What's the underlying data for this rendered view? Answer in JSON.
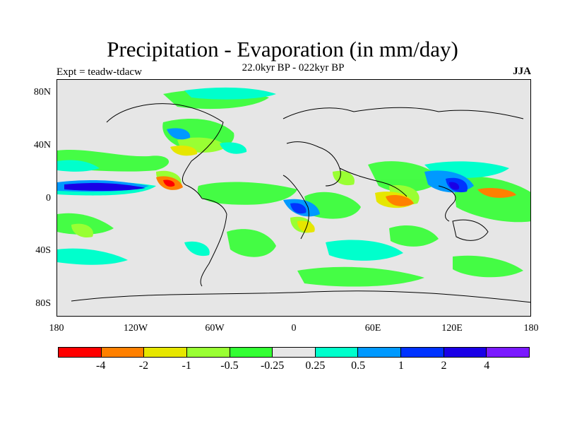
{
  "title": "Precipitation - Evaporation (in mm/day)",
  "subtitle": "22.0kyr BP - 022kyr BP",
  "experiment_label": "Expt = teadw-tdacw",
  "season_label": "JJA",
  "map": {
    "background_color": "#e6e6e6",
    "lat_labels": [
      "80N",
      "40N",
      "0",
      "40S",
      "80S"
    ],
    "lon_labels": [
      "180",
      "120W",
      "60W",
      "0",
      "60E",
      "120E",
      "180"
    ]
  },
  "colorbar": {
    "colors": [
      "#ff0000",
      "#ff8000",
      "#e6e600",
      "#99ff33",
      "#33ff33",
      "#e6e6e6",
      "#00ffcc",
      "#0099ff",
      "#0033ff",
      "#1a00e6",
      "#7a1aff"
    ],
    "labels": [
      "-4",
      "-2",
      "-1",
      "-0.5",
      "-0.25",
      "0.25",
      "0.5",
      "1",
      "2",
      "4"
    ]
  }
}
